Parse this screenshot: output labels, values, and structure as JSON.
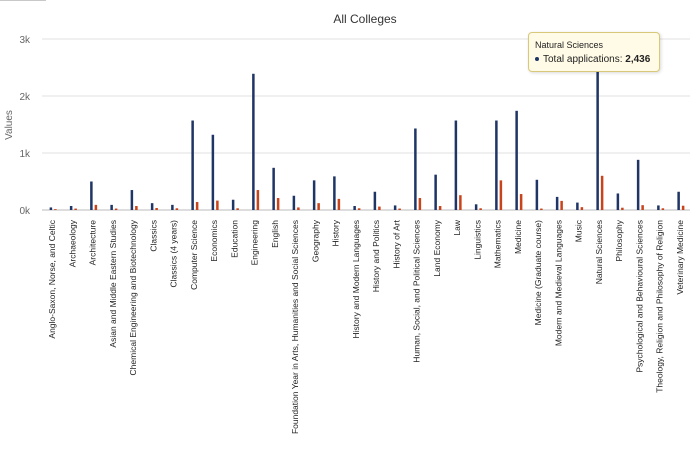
{
  "chart_data": {
    "type": "bar",
    "title": "All Colleges",
    "ylabel": "Values",
    "xlabel": "",
    "ylim": [
      0,
      3000
    ],
    "yticks": [
      {
        "value": 0,
        "label": "0k"
      },
      {
        "value": 1000,
        "label": "1k"
      },
      {
        "value": 2000,
        "label": "2k"
      },
      {
        "value": 3000,
        "label": "3k"
      }
    ],
    "grid": true,
    "categories": [
      "Anglo-Saxon, Norse, and Celtic",
      "Archaeology",
      "Architecture",
      "Asian and Middle Eastern Studies",
      "Chemical Engineering and Biotechnology",
      "Classics",
      "Classics (4 years)",
      "Computer Science",
      "Economics",
      "Education",
      "Engineering",
      "English",
      "Foundation Year in Arts, Humanities and Social Sciences",
      "Geography",
      "History",
      "History and Modern Languages",
      "History and Politics",
      "History of Art",
      "Human, Social, and Political Sciences",
      "Land Economy",
      "Law",
      "Linguistics",
      "Mathematics",
      "Medicine",
      "Medicine (Graduate course)",
      "Modern and Medieval Languages",
      "Music",
      "Natural Sciences",
      "Philosophy",
      "Psychological and Behavioural Sciences",
      "Theology, Religion and Philosophy of Religion",
      "Veterinary Medicine"
    ],
    "series": [
      {
        "name": "Total applications",
        "color": "#1f3566",
        "values": [
          45,
          70,
          500,
          90,
          350,
          120,
          90,
          1570,
          1320,
          180,
          2390,
          740,
          250,
          520,
          590,
          70,
          320,
          80,
          1430,
          620,
          1570,
          100,
          1570,
          1740,
          530,
          230,
          130,
          2436,
          290,
          880,
          80,
          320
        ]
      },
      {
        "name": "",
        "color": "#c8441c",
        "values": [
          15,
          25,
          90,
          25,
          70,
          35,
          30,
          140,
          165,
          30,
          350,
          210,
          45,
          120,
          195,
          30,
          60,
          25,
          210,
          70,
          260,
          30,
          520,
          280,
          25,
          160,
          50,
          600,
          40,
          85,
          30,
          75
        ]
      }
    ],
    "tooltip": {
      "title": "Natural Sciences",
      "label": "Total applications:",
      "value": "2,436"
    }
  }
}
